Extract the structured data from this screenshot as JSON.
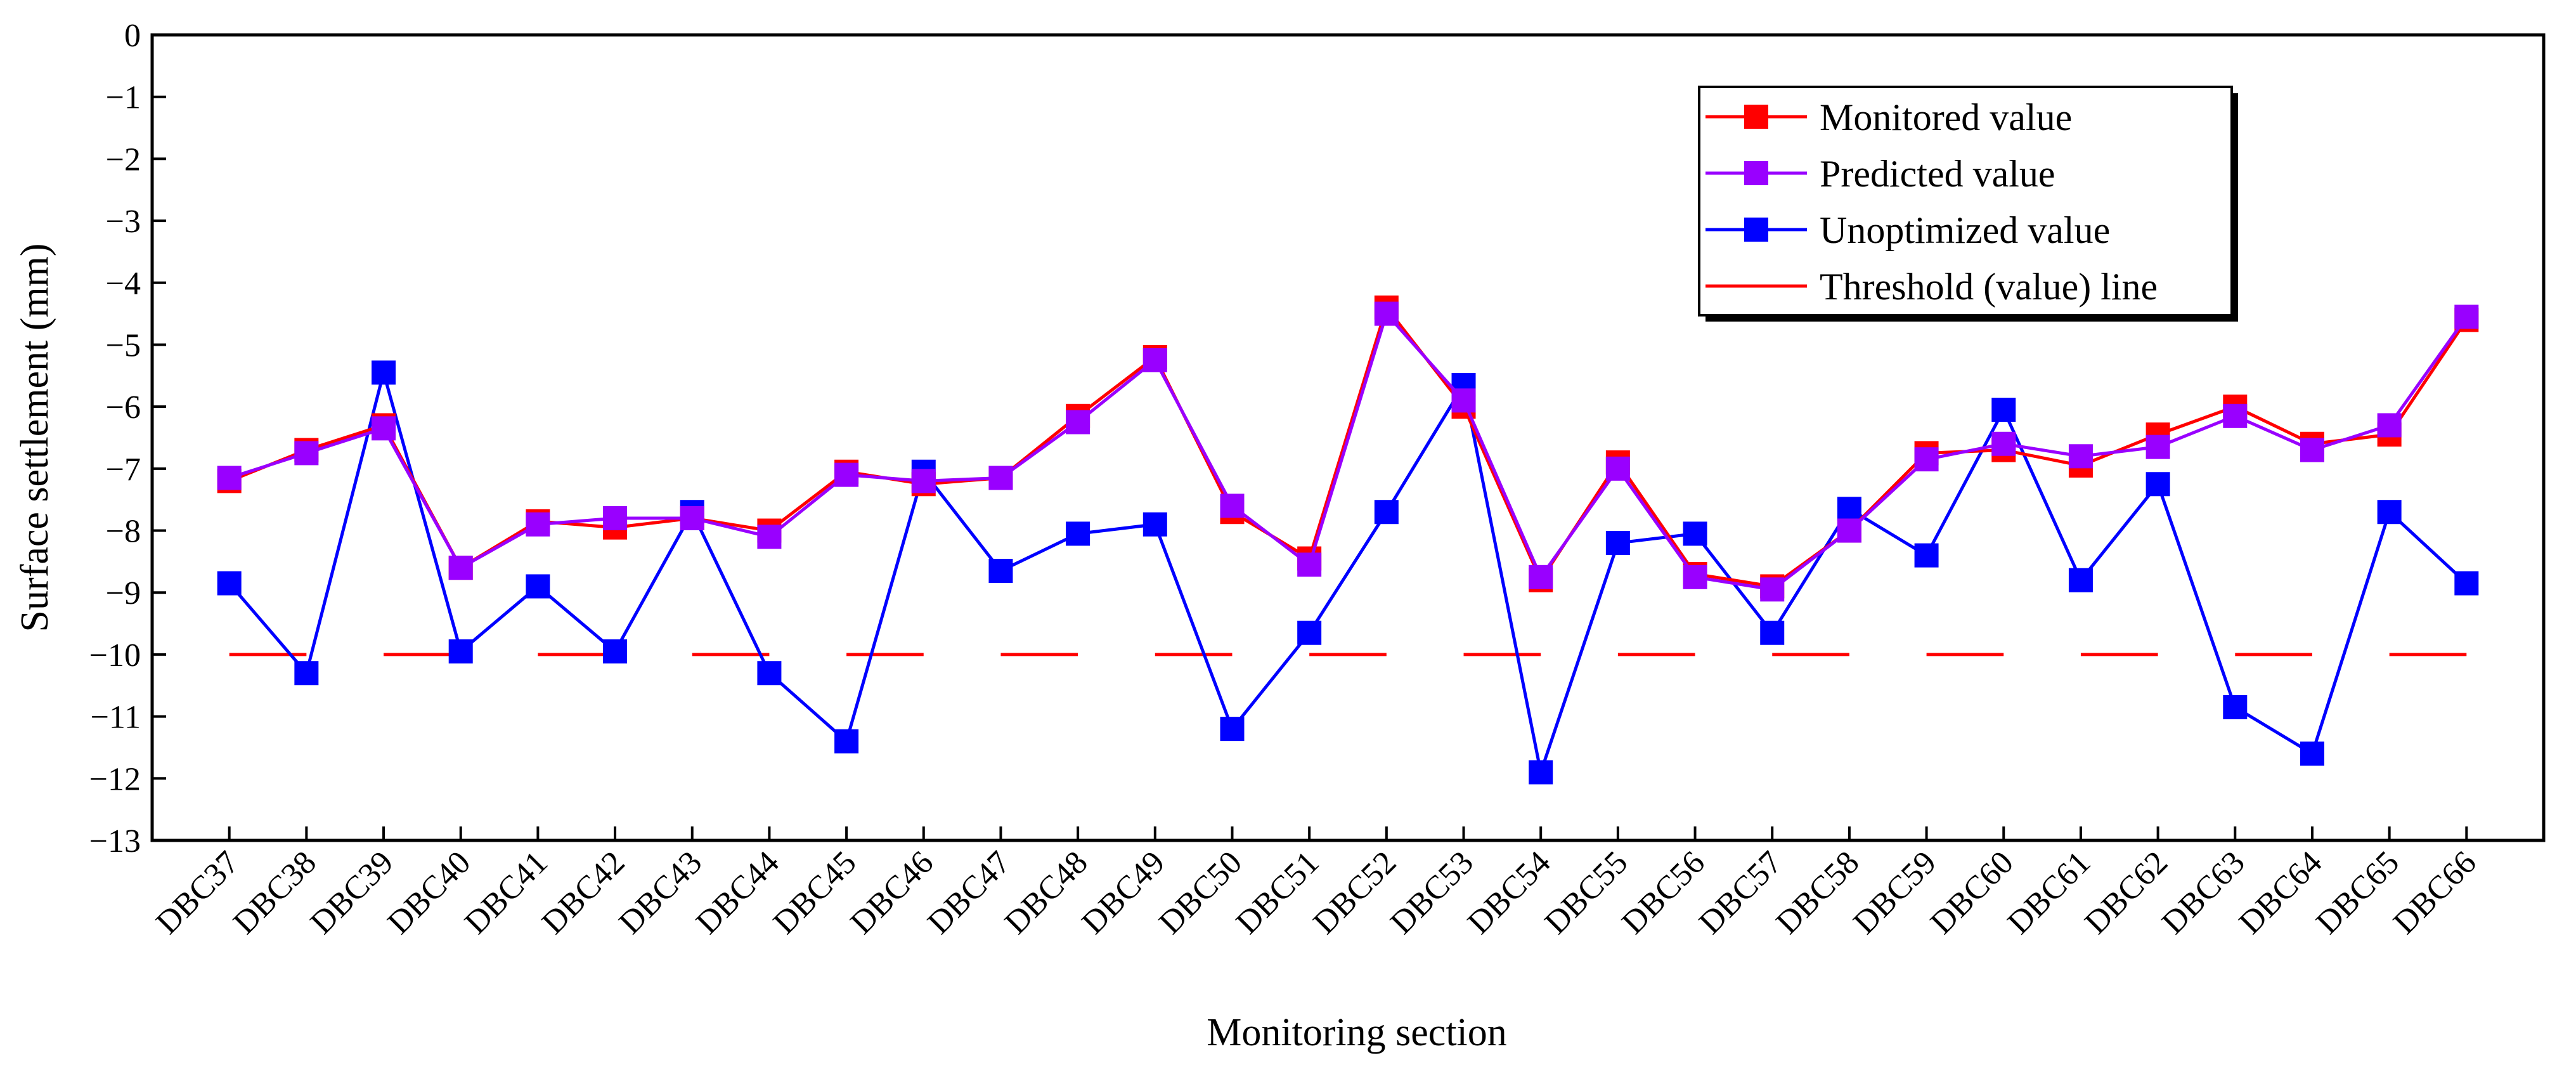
{
  "chart_data": {
    "type": "line",
    "title": "",
    "xlabel": "Monitoring section",
    "ylabel": "Surface settlement (mm)",
    "ylim": [
      -13,
      0
    ],
    "yticks": [
      0,
      -1,
      -2,
      -3,
      -4,
      -5,
      -6,
      -7,
      -8,
      -9,
      -10,
      -11,
      -12,
      -13
    ],
    "ytick_labels": [
      "0",
      "−1",
      "−2",
      "−3",
      "−4",
      "−5",
      "−6",
      "−7",
      "−8",
      "−9",
      "−10",
      "−11",
      "−12",
      "−13"
    ],
    "categories": [
      "DBC37",
      "DBC38",
      "DBC39",
      "DBC40",
      "DBC41",
      "DBC42",
      "DBC43",
      "DBC44",
      "DBC45",
      "DBC46",
      "DBC47",
      "DBC48",
      "DBC49",
      "DBC50",
      "DBC51",
      "DBC52",
      "DBC53",
      "DBC54",
      "DBC55",
      "DBC56",
      "DBC57",
      "DBC58",
      "DBC59",
      "DBC60",
      "DBC61",
      "DBC62",
      "DBC63",
      "DBC64",
      "DBC65",
      "DBC66"
    ],
    "series": [
      {
        "name": "Monitored value",
        "color": "#ff0000",
        "marker": "square",
        "values": [
          -7.2,
          -6.7,
          -6.3,
          -8.6,
          -7.85,
          -7.95,
          -7.8,
          -8.0,
          -7.05,
          -7.25,
          -7.15,
          -6.15,
          -5.2,
          -7.7,
          -8.45,
          -4.4,
          -6.0,
          -8.8,
          -6.9,
          -8.7,
          -8.9,
          -8.0,
          -6.75,
          -6.7,
          -6.95,
          -6.45,
          -6.0,
          -6.6,
          -6.45,
          -4.6
        ]
      },
      {
        "name": "Predicted value",
        "color": "#9900ff",
        "marker": "square",
        "values": [
          -7.15,
          -6.75,
          -6.35,
          -8.6,
          -7.9,
          -7.8,
          -7.8,
          -8.1,
          -7.1,
          -7.2,
          -7.15,
          -6.25,
          -5.25,
          -7.6,
          -8.55,
          -4.5,
          -5.9,
          -8.75,
          -7.0,
          -8.75,
          -8.95,
          -8.0,
          -6.85,
          -6.6,
          -6.8,
          -6.65,
          -6.15,
          -6.7,
          -6.3,
          -4.55
        ]
      },
      {
        "name": "Unoptimized value",
        "color": "#0000ff",
        "marker": "square",
        "values": [
          -8.85,
          -10.3,
          -5.45,
          -9.95,
          -8.9,
          -9.95,
          -7.7,
          -10.3,
          -11.4,
          -7.05,
          -8.65,
          -8.05,
          -7.9,
          -11.2,
          -9.65,
          -7.7,
          -5.65,
          -11.9,
          -8.2,
          -8.05,
          -9.65,
          -7.65,
          -8.4,
          -6.05,
          -8.8,
          -7.25,
          -10.85,
          -11.6,
          -7.7,
          -8.85
        ]
      }
    ],
    "threshold": {
      "name": "Threshold (value) line",
      "value": -10,
      "color": "#ff0000",
      "style": "dashed"
    },
    "legend_position": "top-right",
    "grid": false
  }
}
